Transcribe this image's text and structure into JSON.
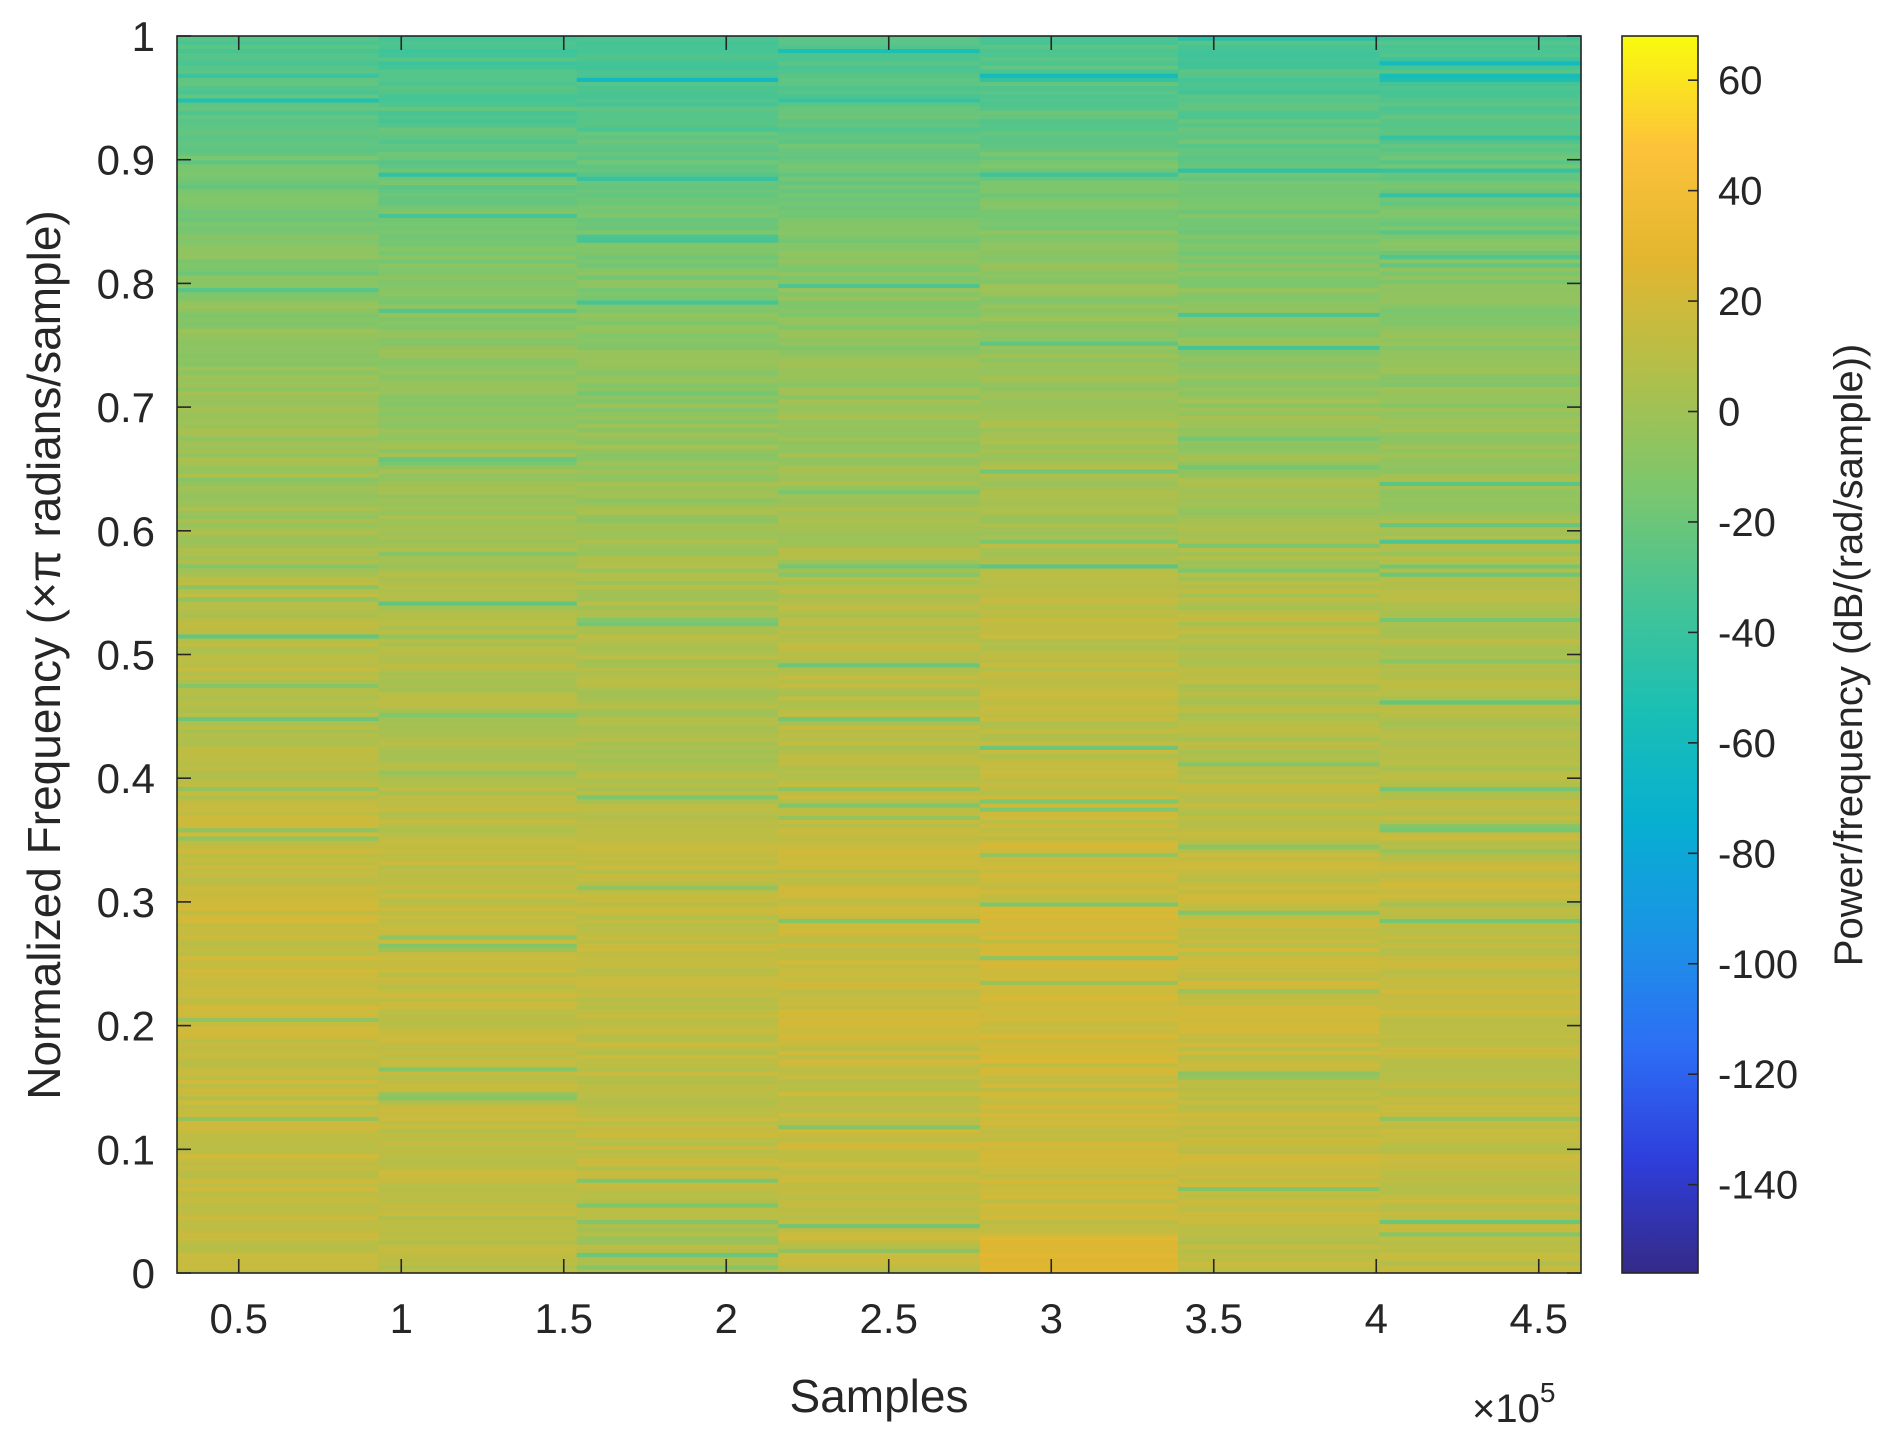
{
  "chart_data": {
    "type": "heatmap",
    "title": "",
    "xlabel": "Samples",
    "ylabel": "Normalized Frequency (×π radians/sample)",
    "x_exponent_label": "×10",
    "x_exponent_power": "5",
    "x_scale_factor": 100000,
    "xlim": [
      0.31,
      4.63
    ],
    "ylim": [
      0,
      1
    ],
    "x_ticks": [
      0.5,
      1,
      1.5,
      2,
      2.5,
      3,
      3.5,
      4,
      4.5
    ],
    "x_tick_labels": [
      "0.5",
      "1",
      "1.5",
      "2",
      "2.5",
      "3",
      "3.5",
      "4",
      "4.5"
    ],
    "y_ticks": [
      0,
      0.1,
      0.2,
      0.3,
      0.4,
      0.5,
      0.6,
      0.7,
      0.8,
      0.9,
      1
    ],
    "y_tick_labels": [
      "0",
      "0.1",
      "0.2",
      "0.3",
      "0.4",
      "0.5",
      "0.6",
      "0.7",
      "0.8",
      "0.9",
      "1"
    ],
    "time_segments": {
      "edges": [
        0.31,
        0.93,
        1.54,
        2.16,
        2.78,
        3.39,
        4.01,
        4.63
      ],
      "centers": [
        0.62,
        1.23,
        1.85,
        2.47,
        3.08,
        3.7,
        4.32
      ]
    },
    "frequency_profile": {
      "freq": [
        0,
        0.05,
        0.1,
        0.15,
        0.2,
        0.25,
        0.3,
        0.35,
        0.4,
        0.45,
        0.5,
        0.55,
        0.6,
        0.65,
        0.7,
        0.75,
        0.8,
        0.85,
        0.9,
        0.95,
        1.0
      ],
      "power_db": [
        12,
        14,
        16,
        14,
        18,
        16,
        16,
        14,
        10,
        8,
        10,
        8,
        2,
        0,
        -2,
        -6,
        -8,
        -14,
        -20,
        -28,
        -32
      ]
    },
    "segment_offsets_db": [
      0,
      -2,
      -3,
      0,
      2,
      -1,
      -2
    ],
    "notable_bands": [
      {
        "segment": 4,
        "freq_from": 0.0,
        "freq_to": 0.03,
        "power_db": 30
      }
    ],
    "colorbar": {
      "label": "Power/frequency (dB/(rad/sample))",
      "range": [
        -156,
        68
      ],
      "ticks": [
        60,
        40,
        20,
        0,
        -20,
        -40,
        -60,
        -80,
        -100,
        -120,
        -140
      ],
      "tick_labels": [
        "60",
        "40",
        "20",
        "0",
        "-20",
        "-40",
        "-60",
        "-80",
        "-100",
        "-120",
        "-140"
      ],
      "colormap": "parula",
      "colormap_stops": [
        "#352A87",
        "#2E3EDB",
        "#2D6EF5",
        "#1B93E5",
        "#07AFD1",
        "#1ABFB4",
        "#46C495",
        "#7DC66C",
        "#B1BF4A",
        "#E2B630",
        "#FCC23A",
        "#F9FB0E"
      ]
    },
    "grid": false,
    "legend": "none"
  }
}
